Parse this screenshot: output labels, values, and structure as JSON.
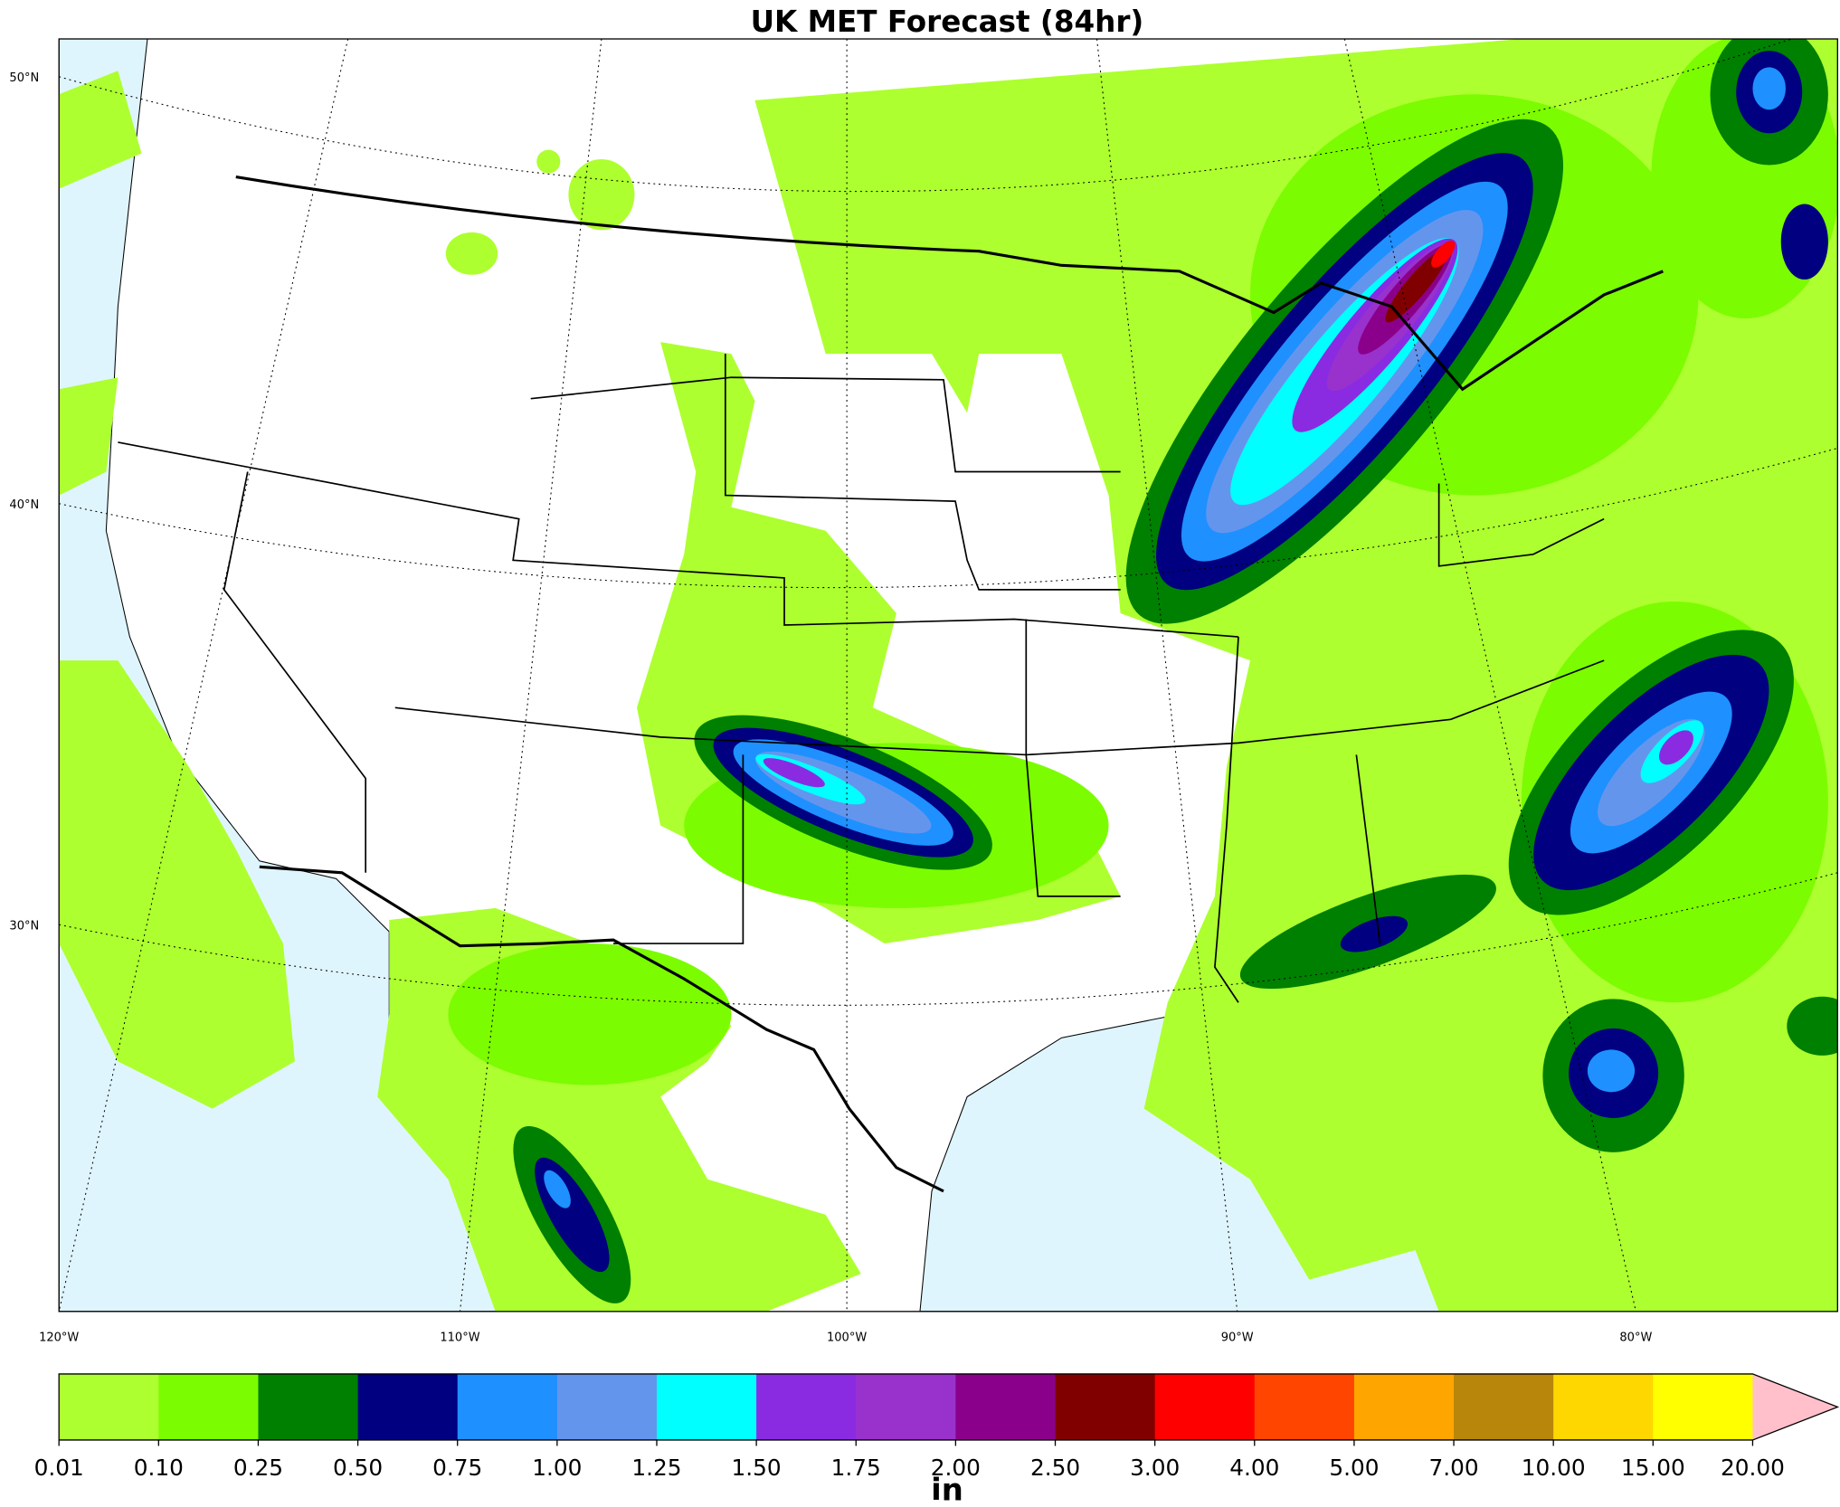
{
  "title": "UK MET Forecast (84hr)",
  "map": {
    "lat_labels": [
      "50°N",
      "40°N",
      "30°N"
    ],
    "lon_labels": [
      "120°W",
      "110°W",
      "100°W",
      "90°W",
      "80°W"
    ]
  },
  "colorbar": {
    "ticks": [
      "0.01",
      "0.10",
      "0.25",
      "0.50",
      "0.75",
      "1.00",
      "1.25",
      "1.50",
      "1.75",
      "2.00",
      "2.50",
      "3.00",
      "4.00",
      "5.00",
      "7.00",
      "10.00",
      "15.00",
      "20.00"
    ],
    "colors": [
      "#adff2f",
      "#7cfc00",
      "#008000",
      "#000080",
      "#1e90ff",
      "#6495ed",
      "#00ffff",
      "#8a2be2",
      "#9932cc",
      "#8b008b",
      "#800000",
      "#ff0000",
      "#ff4500",
      "#ffa500",
      "#b8860b",
      "#ffd700",
      "#ffff00"
    ],
    "extend_color": "#ffc0cb",
    "label": "in"
  }
}
